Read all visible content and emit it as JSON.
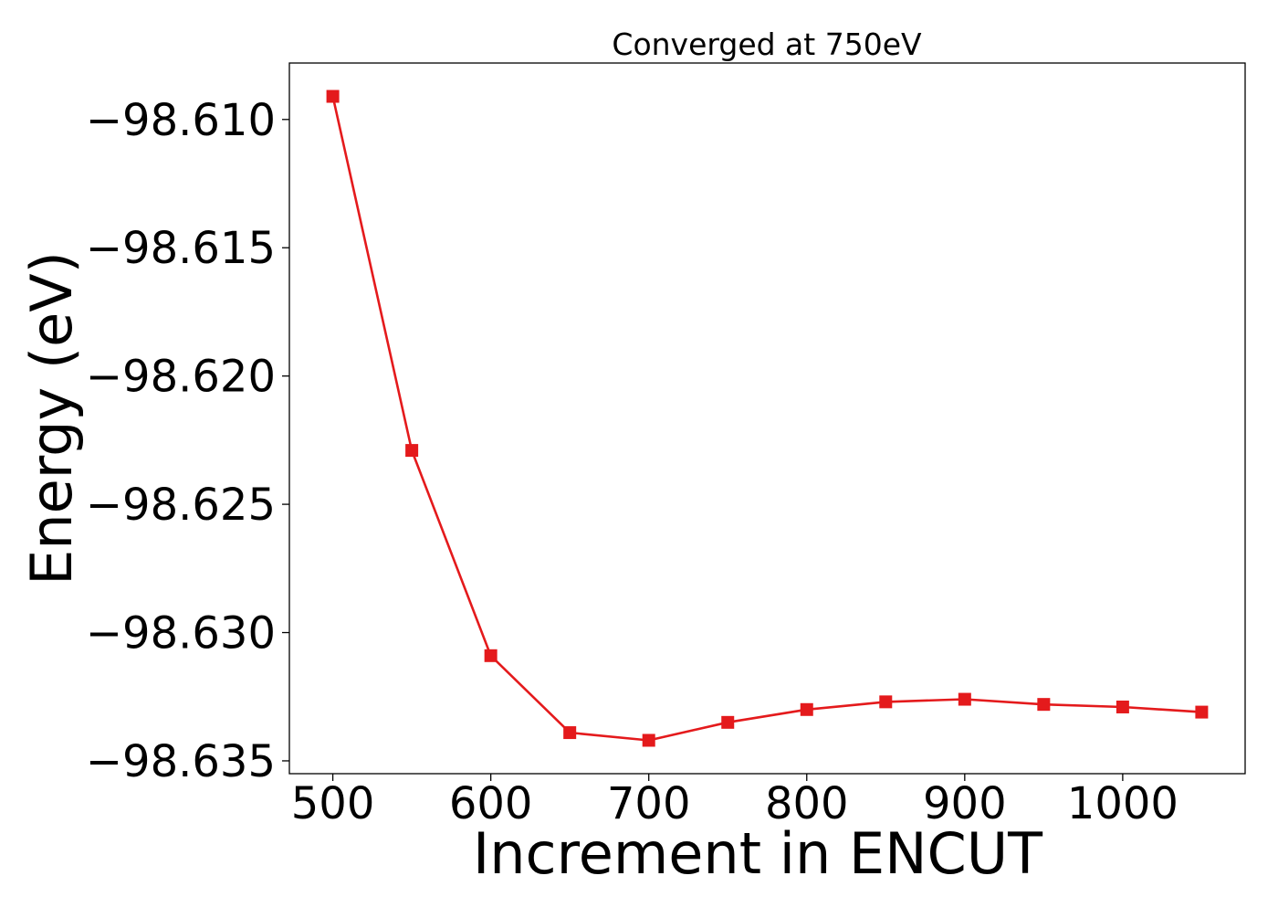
{
  "chart_data": {
    "type": "line",
    "title": "Converged at 750eV",
    "xlabel": "Increment in ENCUT",
    "ylabel": "Energy (eV)",
    "xlim": [
      472.5,
      1077.5
    ],
    "ylim": [
      -98.6355,
      -98.6078
    ],
    "x_ticks": [
      500,
      600,
      700,
      800,
      900,
      1000
    ],
    "x_tick_labels": [
      "500",
      "600",
      "700",
      "800",
      "900",
      "1000"
    ],
    "y_ticks": [
      -98.61,
      -98.615,
      -98.62,
      -98.625,
      -98.63,
      -98.635
    ],
    "y_tick_labels": [
      "−98.610",
      "−98.615",
      "−98.620",
      "−98.625",
      "−98.630",
      "−98.635"
    ],
    "grid": false,
    "series": [
      {
        "color": "#e41a1c",
        "marker": "square",
        "x": [
          500,
          550,
          600,
          650,
          700,
          750,
          800,
          850,
          900,
          950,
          1000,
          1050
        ],
        "y": [
          -98.6091,
          -98.6229,
          -98.6309,
          -98.6339,
          -98.6342,
          -98.6335,
          -98.633,
          -98.6327,
          -98.6326,
          -98.6328,
          -98.6329,
          -98.6331
        ]
      }
    ]
  }
}
